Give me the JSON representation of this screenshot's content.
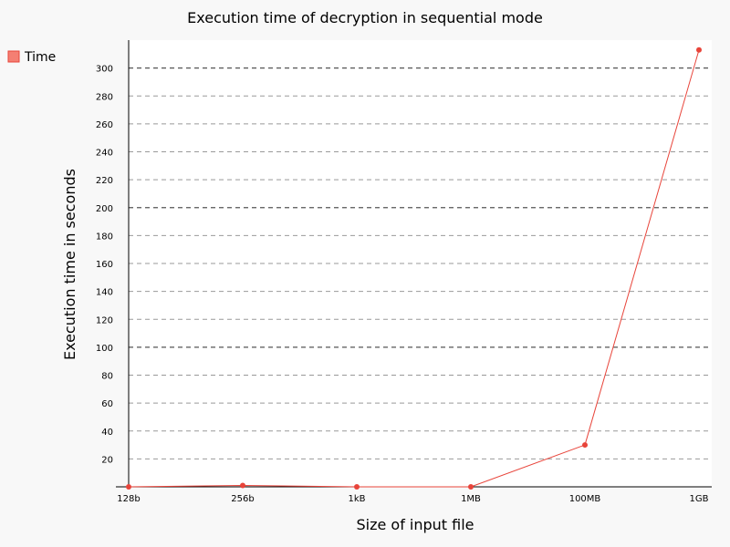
{
  "chart_data": {
    "type": "line",
    "title": "Execution time of decryption in sequential mode",
    "xlabel": "Size of input file",
    "ylabel": "Execution time in seconds",
    "categories": [
      "128b",
      "256b",
      "1kB",
      "1MB",
      "100MB",
      "1GB"
    ],
    "series": [
      {
        "name": "Time",
        "color": "#e8443a",
        "values": [
          0,
          1,
          0,
          0,
          30,
          313
        ]
      }
    ],
    "yticks": [
      20,
      40,
      60,
      80,
      100,
      120,
      140,
      160,
      180,
      200,
      220,
      240,
      260,
      280,
      300
    ],
    "ylim": [
      0,
      320
    ],
    "grid": true,
    "legend_position": "top-left"
  }
}
